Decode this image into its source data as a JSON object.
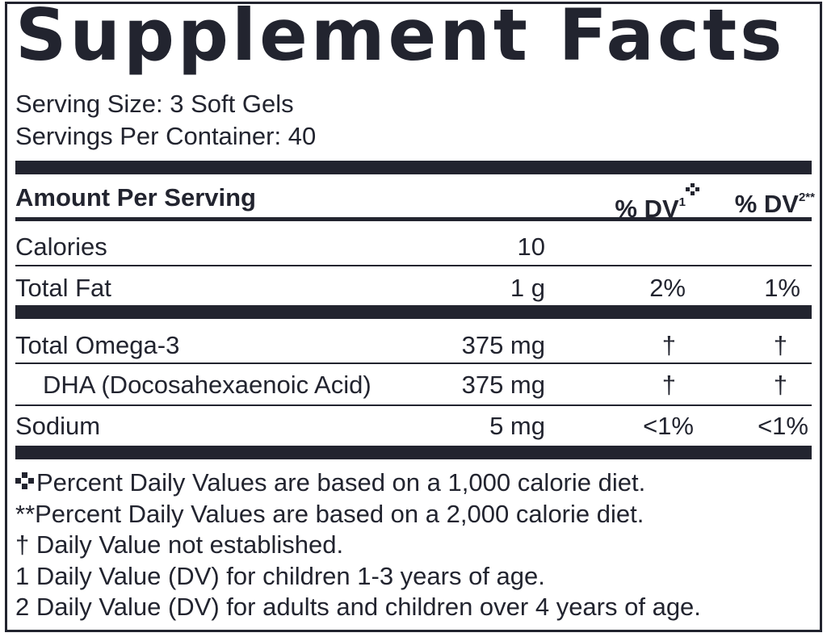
{
  "title": "Supplement Facts",
  "serving_size": "Serving Size: 3 Soft Gels",
  "servings_per_container": "Servings Per Container: 40",
  "header": {
    "amount_per_serving": "Amount Per Serving",
    "dv1_label": "% DV",
    "dv1_sup": "1",
    "dv2_label": "% DV",
    "dv2_sup": "2**"
  },
  "nutrients": [
    {
      "name": "Calories",
      "amount": "10",
      "dv1": "",
      "dv2": ""
    },
    {
      "name": "Total Fat",
      "amount": "1 g",
      "dv1": "2%",
      "dv2": "1%"
    },
    {
      "name": "Total Omega-3",
      "amount": "375 mg",
      "dv1": "†",
      "dv2": "†"
    },
    {
      "name": "DHA (Docosahexaenoic Acid)",
      "amount": "375 mg",
      "dv1": "†",
      "dv2": "†"
    },
    {
      "name": "Sodium",
      "amount": "5 mg",
      "dv1": "<1%",
      "dv2": "<1%"
    }
  ],
  "footnotes": [
    "Percent Daily Values are based on a 1,000 calorie diet.",
    "**Percent Daily Values are based on a 2,000 calorie diet.",
    "† Daily Value not established.",
    "1 Daily Value (DV) for children 1-3 years of age.",
    "2 Daily Value (DV) for adults and children over 4 years of age."
  ],
  "colors": {
    "ink": "#22242f",
    "background": "#ffffff"
  },
  "icons": {
    "dv1_marker": "four-square-cross-icon"
  }
}
